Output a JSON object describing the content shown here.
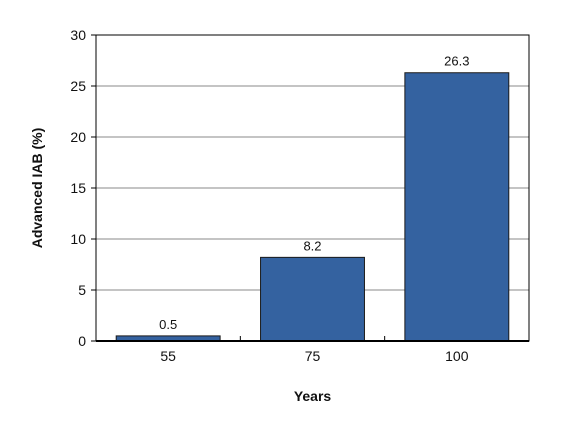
{
  "chart_data": {
    "type": "bar",
    "categories": [
      "55",
      "75",
      "100"
    ],
    "values": [
      0.5,
      8.2,
      26.3
    ],
    "data_labels": [
      "0.5",
      "8.2",
      "26.3"
    ],
    "title": "",
    "xlabel": "Years",
    "ylabel": "Advanced IAB (%)",
    "ylim": [
      0,
      30
    ],
    "yticks": [
      0,
      5,
      10,
      15,
      20,
      25,
      30
    ],
    "grid": "horizontal",
    "legend": "none",
    "colors": {
      "bar": "#3462a0",
      "bar_stroke": "#1a1a1a",
      "grid": "#888888",
      "axis": "#000000"
    }
  }
}
